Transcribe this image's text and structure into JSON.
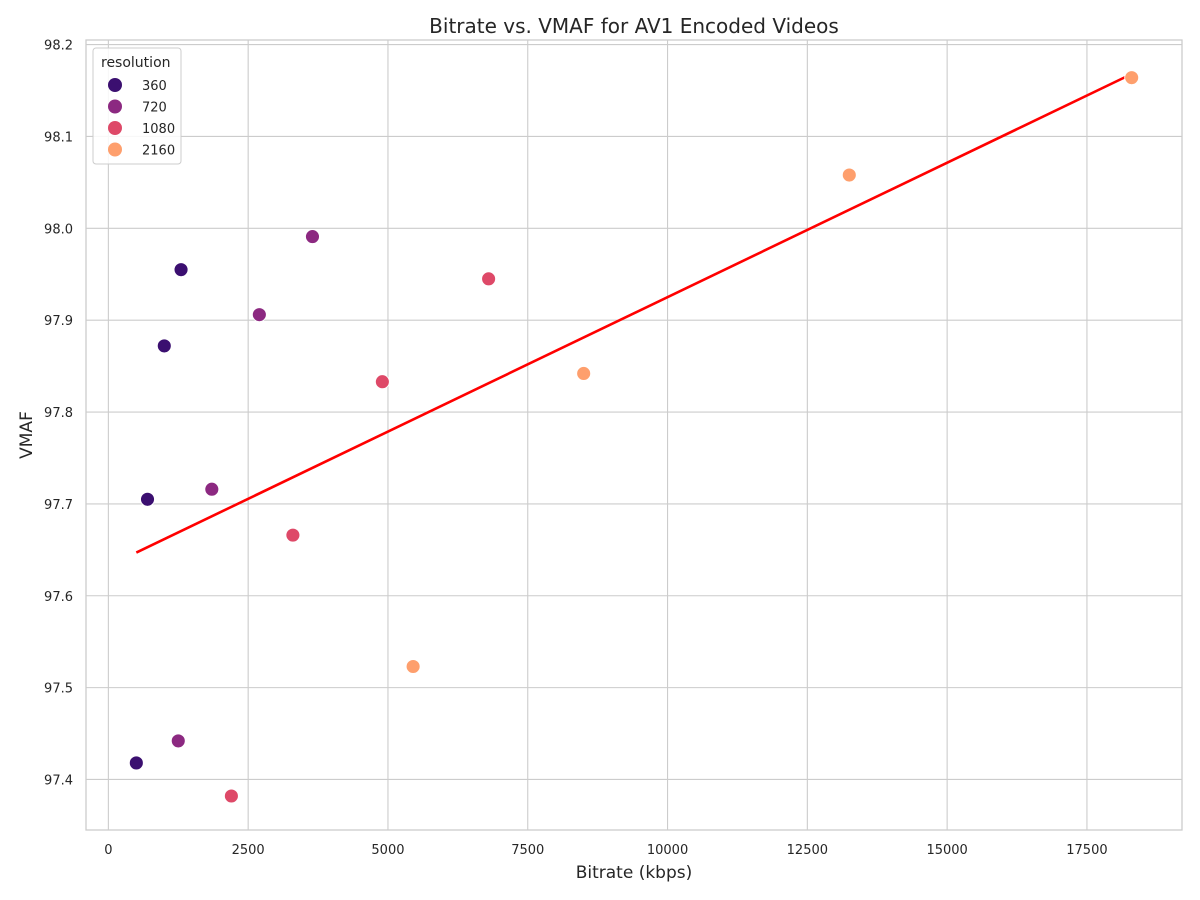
{
  "chart_data": {
    "type": "scatter",
    "title": "Bitrate vs. VMAF for AV1 Encoded Videos",
    "xlabel": "Bitrate (kbps)",
    "ylabel": "VMAF",
    "xlim": [
      -400,
      19200
    ],
    "ylim": [
      97.345,
      98.205
    ],
    "xticks": [
      0,
      2500,
      5000,
      7500,
      10000,
      12500,
      15000,
      17500
    ],
    "xtick_labels": [
      "0",
      "2500",
      "5000",
      "7500",
      "10000",
      "12500",
      "15000",
      "17500"
    ],
    "yticks": [
      97.4,
      97.5,
      97.6,
      97.7,
      97.8,
      97.9,
      98.0,
      98.1,
      98.2
    ],
    "ytick_labels": [
      "97.4",
      "97.5",
      "97.6",
      "97.7",
      "97.8",
      "97.9",
      "98.0",
      "98.1",
      "98.2"
    ],
    "grid": true,
    "legend": {
      "title": "resolution",
      "position": "top-left",
      "entries": [
        "360",
        "720",
        "1080",
        "2160"
      ]
    },
    "series": [
      {
        "name": "360",
        "color": "#3b0f70",
        "points": [
          [
            500,
            97.418
          ],
          [
            700,
            97.705
          ],
          [
            1000,
            97.872
          ],
          [
            1300,
            97.955
          ]
        ]
      },
      {
        "name": "720",
        "color": "#8c2981",
        "points": [
          [
            1250,
            97.442
          ],
          [
            1850,
            97.716
          ],
          [
            2700,
            97.906
          ],
          [
            3650,
            97.991
          ]
        ]
      },
      {
        "name": "1080",
        "color": "#de4968",
        "points": [
          [
            2200,
            97.382
          ],
          [
            3300,
            97.666
          ],
          [
            4900,
            97.833
          ],
          [
            6800,
            97.945
          ]
        ]
      },
      {
        "name": "2160",
        "color": "#fe9f6d",
        "points": [
          [
            5450,
            97.523
          ],
          [
            8500,
            97.842
          ],
          [
            13250,
            98.058
          ],
          [
            18300,
            98.164
          ]
        ]
      }
    ],
    "trendline": {
      "color": "#ff0000",
      "x": [
        500,
        18300
      ],
      "y": [
        97.647,
        98.168
      ]
    }
  }
}
